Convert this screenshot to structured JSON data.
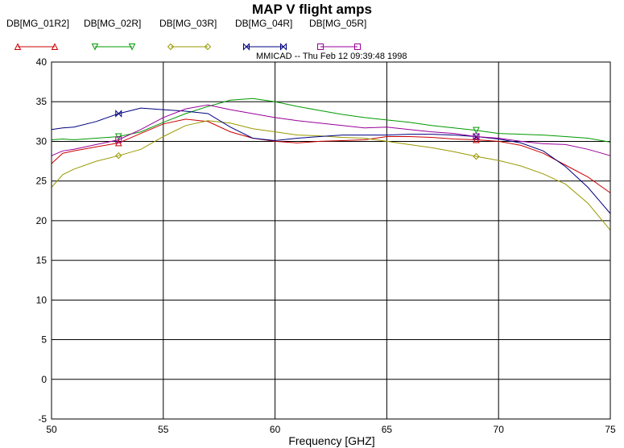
{
  "chart_data": {
    "type": "line",
    "title": "MAP V flight amps",
    "subtitle": "MMICAD -- Thu Feb 12 09:39:48 1998",
    "xlabel": "Frequency [GHZ]",
    "ylabel": "",
    "xlim": [
      50,
      75
    ],
    "ylim": [
      -5,
      40
    ],
    "xticks": [
      50,
      55,
      60,
      65,
      70,
      75
    ],
    "yticks": [
      -5,
      0,
      5,
      10,
      15,
      20,
      25,
      30,
      35,
      40
    ],
    "grid": true,
    "legend_position": "top",
    "series": [
      {
        "name": "DB[MG_01R2]",
        "color": "#cc0000",
        "marker": "triangle-up",
        "x": [
          50,
          50.5,
          51,
          52,
          53,
          54,
          55,
          56,
          57,
          58,
          59,
          60,
          61,
          62,
          63,
          64,
          65,
          66,
          67,
          68,
          69,
          70,
          71,
          72,
          73,
          74,
          75
        ],
        "y": [
          27.2,
          28.5,
          28.8,
          29.3,
          29.8,
          31.0,
          32.2,
          32.8,
          32.5,
          31.2,
          30.4,
          30.0,
          29.8,
          30.0,
          30.1,
          30.2,
          30.6,
          30.6,
          30.5,
          30.3,
          30.2,
          30.0,
          29.5,
          28.5,
          27.0,
          25.5,
          23.5
        ],
        "marker_x": [
          53,
          69
        ]
      },
      {
        "name": "DB[MG_02R]",
        "color": "#009900",
        "marker": "triangle-down",
        "x": [
          50,
          50.5,
          51,
          52,
          53,
          54,
          55,
          56,
          57,
          58,
          59,
          60,
          61,
          62,
          63,
          64,
          65,
          66,
          67,
          68,
          69,
          70,
          71,
          72,
          73,
          74,
          75
        ],
        "y": [
          30.2,
          30.3,
          30.2,
          30.4,
          30.6,
          31.2,
          32.4,
          33.5,
          34.4,
          35.2,
          35.4,
          35.0,
          34.4,
          33.9,
          33.4,
          33.0,
          32.7,
          32.4,
          32.0,
          31.7,
          31.4,
          31.0,
          30.9,
          30.8,
          30.6,
          30.4,
          29.9
        ],
        "marker_x": [
          53,
          69
        ]
      },
      {
        "name": "DB[MG_03R]",
        "color": "#999900",
        "marker": "diamond",
        "x": [
          50,
          50.5,
          51,
          52,
          53,
          54,
          55,
          56,
          57,
          58,
          59,
          60,
          61,
          62,
          63,
          64,
          65,
          66,
          67,
          68,
          69,
          70,
          71,
          72,
          73,
          74,
          75
        ],
        "y": [
          24.2,
          25.8,
          26.5,
          27.5,
          28.2,
          29.0,
          30.6,
          32.0,
          32.6,
          32.3,
          31.6,
          31.2,
          30.8,
          30.7,
          30.5,
          30.4,
          30.0,
          29.6,
          29.2,
          28.7,
          28.1,
          27.6,
          26.9,
          25.9,
          24.6,
          22.2,
          18.8
        ],
        "marker_x": [
          53,
          69
        ]
      },
      {
        "name": "DB[MG_04R]",
        "color": "#000080",
        "marker": "bowtie",
        "x": [
          50,
          50.5,
          51,
          52,
          53,
          54,
          55,
          56,
          57,
          58,
          59,
          60,
          61,
          62,
          63,
          64,
          65,
          66,
          67,
          68,
          69,
          70,
          71,
          72,
          73,
          74,
          75
        ],
        "y": [
          31.5,
          31.7,
          31.8,
          32.5,
          33.5,
          34.2,
          34.0,
          33.8,
          33.5,
          31.8,
          30.4,
          30.1,
          30.4,
          30.6,
          30.8,
          30.8,
          30.8,
          30.9,
          30.9,
          30.8,
          30.6,
          30.3,
          29.8,
          28.8,
          26.8,
          24.2,
          20.9
        ],
        "marker_x": [
          53,
          69
        ]
      },
      {
        "name": "DB[MG_05R]",
        "color": "#990099",
        "marker": "square",
        "x": [
          50,
          50.5,
          51,
          52,
          53,
          54,
          55,
          56,
          57,
          58,
          59,
          60,
          61,
          62,
          63,
          64,
          65,
          66,
          67,
          68,
          69,
          70,
          71,
          72,
          73,
          74,
          75
        ],
        "y": [
          28.2,
          28.8,
          29.0,
          29.6,
          30.2,
          31.5,
          33.0,
          34.1,
          34.6,
          34.0,
          33.5,
          33.0,
          32.6,
          32.3,
          32.0,
          31.7,
          31.8,
          31.5,
          31.2,
          31.0,
          30.6,
          30.4,
          30.0,
          29.7,
          29.6,
          29.0,
          28.2
        ],
        "marker_x": [
          53,
          69
        ]
      }
    ]
  }
}
